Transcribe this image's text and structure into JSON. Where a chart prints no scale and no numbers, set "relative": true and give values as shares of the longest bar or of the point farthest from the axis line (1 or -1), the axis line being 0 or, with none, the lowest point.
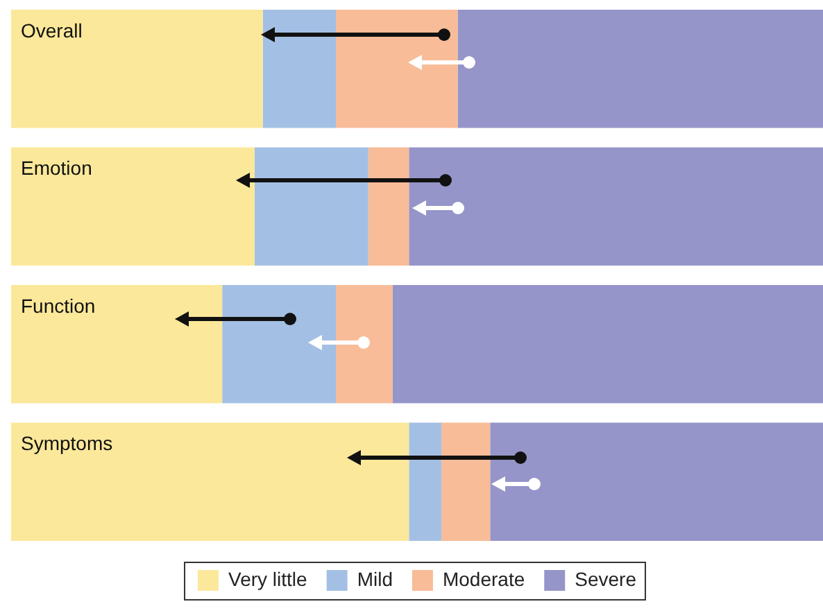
{
  "chart_data": {
    "type": "bar",
    "orientation": "horizontal",
    "stacked": true,
    "relative": true,
    "legend": "bottom",
    "categories": [
      "Overall",
      "Emotion",
      "Function",
      "Symptoms"
    ],
    "series": [
      {
        "name": "Very little",
        "color": "#fbe89a",
        "values": [
          0.31,
          0.3,
          0.26,
          0.49
        ]
      },
      {
        "name": "Mild",
        "color": "#a3c0e4",
        "values": [
          0.09,
          0.14,
          0.14,
          0.04
        ]
      },
      {
        "name": "Moderate",
        "color": "#f8bc98",
        "values": [
          0.15,
          0.05,
          0.07,
          0.06
        ]
      },
      {
        "name": "Severe",
        "color": "#9695c9",
        "values": [
          0.45,
          0.51,
          0.53,
          0.41
        ]
      }
    ]
  }
}
